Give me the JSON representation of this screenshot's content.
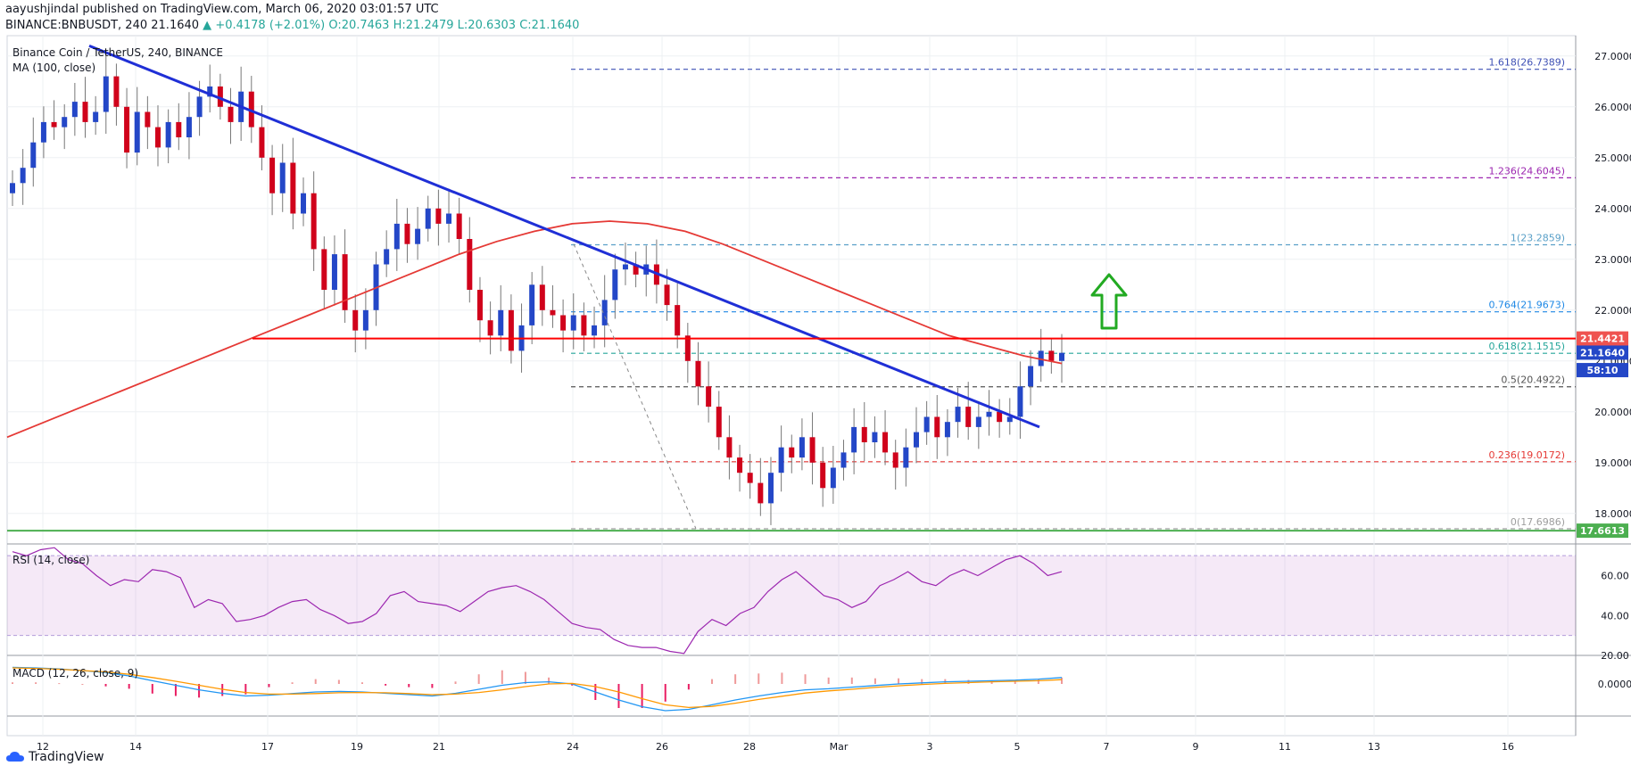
{
  "header": {
    "author": "aayushjindal",
    "published_text": "published on TradingView.com, March 06, 2020 03:01:57 UTC",
    "symbol_line": "BINANCE:BNBUSDT, 240",
    "last": "21.1640",
    "change": "+0.4178 (+2.01%)",
    "open": "O:20.7463",
    "high": "H:21.2479",
    "low": "L:20.6303",
    "close": "C:21.1640"
  },
  "legend": {
    "title": "Binance Coin / TetherUS, 240, BINANCE",
    "ma": "MA (100, close)",
    "rsi": "RSI (14, close)",
    "macd": "MACD (12, 26, close, 9)"
  },
  "footer": {
    "brand": "TradingView"
  },
  "colors": {
    "bull": "#26a69a",
    "bear": "#ef5350",
    "candle_up": "#2447c7",
    "candle_down": "#d0021b",
    "ma": "#e53935",
    "trendline": "#1f2fd6",
    "resistance": "#ff0000",
    "support": "#4caf50",
    "rsi": "#9c27b0",
    "macd": "#2196f3",
    "signal": "#ff9800"
  },
  "chart_data": {
    "type": "candlestick",
    "y_axis": {
      "min": 17.4,
      "max": 27.4,
      "ticks": [
        "27.0000",
        "26.0000",
        "25.0000",
        "24.0000",
        "23.0000",
        "22.0000",
        "21.0000",
        "20.0000",
        "19.0000",
        "18.0000"
      ]
    },
    "x_ticks": [
      "12",
      "14",
      "17",
      "19",
      "21",
      "24",
      "26",
      "28",
      "Mar",
      "3",
      "5",
      "7",
      "9",
      "11",
      "13",
      "16"
    ],
    "price_tags": [
      {
        "label": "21.4421",
        "value": 21.4421,
        "color": "#ef5350"
      },
      {
        "label": "21.1640",
        "value": 21.164,
        "color": "#2447c7"
      },
      {
        "label": "58:10",
        "value": 20.82,
        "color": "#2447c7"
      },
      {
        "label": "17.6613",
        "value": 17.6613,
        "color": "#4caf50"
      }
    ],
    "fibonacci": [
      {
        "label": "1.618(26.7389)",
        "value": 26.7389,
        "color": "#3f51b5"
      },
      {
        "label": "1.236(24.6045)",
        "value": 24.6045,
        "color": "#9c27b0"
      },
      {
        "label": "1(23.2859)",
        "value": 23.2859,
        "color": "#5aa0c8"
      },
      {
        "label": "0.764(21.9673)",
        "value": 21.9673,
        "color": "#1e88e5"
      },
      {
        "label": "0.618(21.1515)",
        "value": 21.1515,
        "color": "#26a69a"
      },
      {
        "label": "0.5(20.4922)",
        "value": 20.4922,
        "color": "#555555"
      },
      {
        "label": "0.236(19.0172)",
        "value": 19.0172,
        "color": "#e53935"
      },
      {
        "label": "0(17.6986)",
        "value": 17.6986,
        "color": "#9e9e9e"
      }
    ],
    "resistance_level": 21.4421,
    "support_level": 17.6613,
    "close_series": [
      24.5,
      24.8,
      25.3,
      25.7,
      25.6,
      25.8,
      26.1,
      25.7,
      25.9,
      26.6,
      26.0,
      25.1,
      25.9,
      25.6,
      25.2,
      25.7,
      25.4,
      25.8,
      26.2,
      26.4,
      26.0,
      25.7,
      26.3,
      25.6,
      25.0,
      24.3,
      24.9,
      23.9,
      24.3,
      23.2,
      22.4,
      23.1,
      22.0,
      21.6,
      22.0,
      22.9,
      23.2,
      23.7,
      23.3,
      23.6,
      24.0,
      23.7,
      23.9,
      23.4,
      22.4,
      21.8,
      21.5,
      22.0,
      21.2,
      21.7,
      22.5,
      22.0,
      21.9,
      21.6,
      21.9,
      21.5,
      21.7,
      22.2,
      22.8,
      22.9,
      22.7,
      22.9,
      22.5,
      22.1,
      21.5,
      21.0,
      20.5,
      20.1,
      19.5,
      19.1,
      18.8,
      18.6,
      18.2,
      18.8,
      19.3,
      19.1,
      19.5,
      19.0,
      18.5,
      18.9,
      19.2,
      19.7,
      19.4,
      19.6,
      19.2,
      18.9,
      19.3,
      19.6,
      19.9,
      19.5,
      19.8,
      20.1,
      19.7,
      19.9,
      20.0,
      19.8,
      19.9,
      20.5,
      20.9,
      21.2,
      21.0,
      21.16
    ],
    "ma_series": [
      19.5,
      19.8,
      20.1,
      20.4,
      20.7,
      21.0,
      21.3,
      21.6,
      21.9,
      22.2,
      22.5,
      22.8,
      23.1,
      23.35,
      23.55,
      23.7,
      23.75,
      23.7,
      23.55,
      23.3,
      23.0,
      22.7,
      22.4,
      22.1,
      21.8,
      21.5,
      21.3,
      21.1,
      20.95
    ],
    "rsi_range": [
      20,
      75
    ],
    "rsi_ticks": [
      "60.00",
      "40.00",
      "20.00"
    ],
    "rsi_series": [
      72,
      70,
      73,
      74,
      68,
      66,
      60,
      55,
      58,
      57,
      63,
      62,
      59,
      44,
      48,
      46,
      37,
      38,
      40,
      44,
      47,
      48,
      43,
      40,
      36,
      37,
      41,
      50,
      52,
      47,
      46,
      45,
      42,
      47,
      52,
      54,
      55,
      52,
      48,
      42,
      36,
      34,
      33,
      28,
      25,
      24,
      24,
      22,
      21,
      32,
      38,
      35,
      41,
      44,
      52,
      58,
      62,
      56,
      50,
      48,
      44,
      47,
      55,
      58,
      62,
      57,
      55,
      60,
      63,
      60,
      64,
      68,
      70,
      66,
      60,
      62
    ],
    "macd_ticks": [
      "0.0000"
    ],
    "macd_series": [
      0.62,
      0.6,
      0.56,
      0.5,
      0.42,
      0.3,
      0.12,
      -0.05,
      -0.22,
      -0.35,
      -0.45,
      -0.42,
      -0.36,
      -0.3,
      -0.28,
      -0.3,
      -0.35,
      -0.4,
      -0.45,
      -0.35,
      -0.2,
      -0.05,
      0.05,
      0.08,
      0.0,
      -0.3,
      -0.6,
      -0.85,
      -1.0,
      -0.95,
      -0.78,
      -0.6,
      -0.45,
      -0.32,
      -0.22,
      -0.18,
      -0.12,
      -0.06,
      0.0,
      0.04,
      0.08,
      0.1,
      0.12,
      0.14,
      0.18,
      0.24
    ],
    "signal_series": [
      0.6,
      0.58,
      0.55,
      0.5,
      0.45,
      0.36,
      0.24,
      0.1,
      -0.05,
      -0.2,
      -0.32,
      -0.38,
      -0.38,
      -0.36,
      -0.33,
      -0.32,
      -0.33,
      -0.36,
      -0.4,
      -0.38,
      -0.32,
      -0.22,
      -0.1,
      0.0,
      0.02,
      -0.1,
      -0.3,
      -0.55,
      -0.78,
      -0.88,
      -0.84,
      -0.72,
      -0.58,
      -0.46,
      -0.34,
      -0.26,
      -0.2,
      -0.13,
      -0.07,
      -0.02,
      0.02,
      0.05,
      0.08,
      0.1,
      0.12,
      0.16
    ],
    "macd_range": [
      -1.2,
      1.0
    ]
  }
}
